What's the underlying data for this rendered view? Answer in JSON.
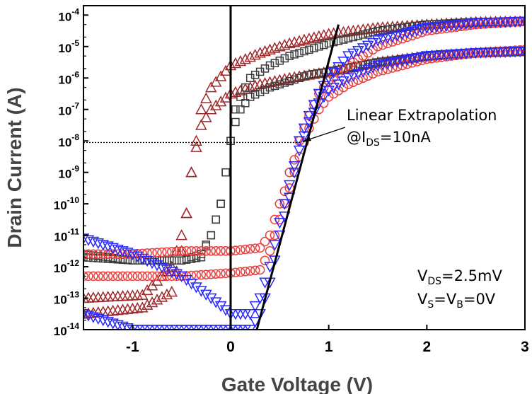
{
  "chart_data": {
    "type": "scatter",
    "title": "",
    "xlabel": "Gate Voltage (V)",
    "ylabel": "Drain Current (A)",
    "xlim": [
      -1.5,
      3
    ],
    "ylim": [
      -14,
      -3.7
    ],
    "yscale": "log",
    "x_ticks": [
      {
        "value": -1,
        "label": "-1"
      },
      {
        "value": 0,
        "label": "0"
      },
      {
        "value": 1,
        "label": "1"
      },
      {
        "value": 2,
        "label": "2"
      },
      {
        "value": 3,
        "label": "3"
      }
    ],
    "y_ticks": [
      {
        "exp": -4,
        "base": "10",
        "sup": "-4"
      },
      {
        "exp": -5,
        "base": "10",
        "sup": "-5"
      },
      {
        "exp": -6,
        "base": "10",
        "sup": "-6"
      },
      {
        "exp": -7,
        "base": "10",
        "sup": "-7"
      },
      {
        "exp": -8,
        "base": "10",
        "sup": "-8"
      },
      {
        "exp": -9,
        "base": "10",
        "sup": "-9"
      },
      {
        "exp": -10,
        "base": "10",
        "sup": "-10"
      },
      {
        "exp": -11,
        "base": "10",
        "sup": "-11"
      },
      {
        "exp": -12,
        "base": "10",
        "sup": "-12"
      },
      {
        "exp": -13,
        "base": "10",
        "sup": "-13"
      },
      {
        "exp": -14,
        "base": "10",
        "sup": "-14"
      }
    ],
    "series": [
      {
        "name": "triangle-up high VDS",
        "marker": "triangle-up",
        "color": "#a0282a",
        "x": [
          -1.5,
          -0.9,
          -0.6,
          -0.5,
          -0.45,
          -0.4,
          -0.35,
          -0.3,
          -0.2,
          0,
          0.3,
          0.6,
          1.0,
          1.5,
          2.0,
          2.5,
          3.0
        ],
        "log10_y": [
          -13.0,
          -12.9,
          -12.0,
          -11.0,
          -10.3,
          -9.0,
          -8.0,
          -7.0,
          -6.3,
          -5.6,
          -5.2,
          -4.9,
          -4.6,
          -4.4,
          -4.3,
          -4.22,
          -4.2
        ]
      },
      {
        "name": "triangle-up low VDS",
        "marker": "triangle-up",
        "color": "#a0282a",
        "x": [
          -1.5,
          -0.9,
          -0.6,
          -0.5,
          -0.45,
          -0.4,
          -0.35,
          -0.3,
          -0.2,
          0,
          0.3,
          0.6,
          1.0,
          1.5,
          2.0,
          2.5,
          3.0
        ],
        "log10_y": [
          -13.5,
          -13.3,
          -12.8,
          -11.5,
          -10.3,
          -9.0,
          -8.2,
          -7.5,
          -7.0,
          -6.5,
          -6.2,
          -6.0,
          -5.8,
          -5.5,
          -5.3,
          -5.2,
          -5.15
        ]
      },
      {
        "name": "square high VDS",
        "marker": "square",
        "color": "#3c3c3c",
        "x": [
          -1.5,
          -1.0,
          -0.5,
          -0.3,
          -0.2,
          -0.1,
          -0.05,
          0,
          0.05,
          0.1,
          0.2,
          0.4,
          0.6,
          0.8,
          1.0,
          1.5,
          2.0,
          2.5,
          3.0
        ],
        "log10_y": [
          -11.6,
          -11.8,
          -11.8,
          -11.6,
          -11.0,
          -10.0,
          -9.0,
          -8.0,
          -7.0,
          -6.6,
          -6.0,
          -5.6,
          -5.3,
          -5.1,
          -4.9,
          -4.5,
          -4.3,
          -4.22,
          -4.2
        ]
      },
      {
        "name": "square low VDS",
        "marker": "square",
        "color": "#3c3c3c",
        "x": [
          -1.5,
          -1.0,
          -0.5,
          -0.3,
          -0.2,
          -0.1,
          -0.05,
          0,
          0.05,
          0.1,
          0.2,
          0.4,
          0.6,
          0.8,
          1.0,
          1.5,
          2.0,
          2.5,
          3.0
        ],
        "log10_y": [
          -11.7,
          -11.8,
          -11.8,
          -11.7,
          -11.0,
          -10.0,
          -9.0,
          -8.0,
          -7.4,
          -7.0,
          -6.6,
          -6.3,
          -6.1,
          -5.9,
          -5.8,
          -5.5,
          -5.3,
          -5.2,
          -5.15
        ]
      },
      {
        "name": "circle high VDS",
        "marker": "circle",
        "color": "#e84040",
        "x": [
          -1.5,
          -1.0,
          -0.5,
          0,
          0.3,
          0.4,
          0.45,
          0.5,
          0.55,
          0.6,
          0.65,
          0.7,
          0.8,
          0.9,
          1.0,
          1.2,
          1.5,
          2.0,
          2.5,
          3.0
        ],
        "log10_y": [
          -11.6,
          -11.6,
          -11.5,
          -11.5,
          -11.4,
          -11.0,
          -10.5,
          -10.0,
          -9.6,
          -9.0,
          -8.6,
          -8.0,
          -7.2,
          -6.5,
          -6.1,
          -5.6,
          -5.0,
          -4.5,
          -4.3,
          -4.2
        ]
      },
      {
        "name": "circle low VDS",
        "marker": "circle",
        "color": "#e84040",
        "x": [
          -1.5,
          -1.0,
          -0.5,
          0,
          0.3,
          0.4,
          0.45,
          0.5,
          0.55,
          0.6,
          0.65,
          0.7,
          0.8,
          0.9,
          1.0,
          1.2,
          1.5,
          2.0,
          2.5,
          3.0
        ],
        "log10_y": [
          -12.3,
          -12.3,
          -12.3,
          -12.2,
          -12.1,
          -11.5,
          -11.0,
          -10.5,
          -10.0,
          -9.5,
          -9.0,
          -8.5,
          -7.6,
          -7.0,
          -6.6,
          -6.2,
          -5.8,
          -5.4,
          -5.2,
          -5.1
        ]
      },
      {
        "name": "triangle-down high VDS",
        "marker": "triangle-down",
        "color": "#2828ff",
        "x": [
          -1.5,
          -1.0,
          -0.5,
          -0.2,
          0,
          0.2,
          0.3,
          0.4,
          0.45,
          0.5,
          0.55,
          0.6,
          0.65,
          0.7,
          0.8,
          0.9,
          1.0,
          1.2,
          1.5,
          2.0,
          2.5,
          3.0
        ],
        "log10_y": [
          -11.1,
          -11.6,
          -12.3,
          -13.0,
          -13.5,
          -13.5,
          -13.0,
          -12.0,
          -11.3,
          -10.6,
          -10.0,
          -9.4,
          -8.8,
          -8.0,
          -7.2,
          -6.5,
          -6.0,
          -5.3,
          -4.8,
          -4.4,
          -4.25,
          -4.2
        ]
      },
      {
        "name": "triangle-down low VDS",
        "marker": "triangle-down",
        "color": "#2828ff",
        "x": [
          -1.5,
          -1.0,
          -0.5,
          -0.2,
          0,
          0.2,
          0.3,
          0.4,
          0.45,
          0.5,
          0.55,
          0.6,
          0.65,
          0.7,
          0.8,
          0.9,
          1.0,
          1.2,
          1.5,
          2.0,
          2.5,
          3.0
        ],
        "log10_y": [
          -13.5,
          -14.0,
          -14.0,
          -14.0,
          -14.0,
          -14.0,
          -13.5,
          -12.5,
          -11.8,
          -11.0,
          -10.4,
          -9.8,
          -9.0,
          -8.3,
          -7.4,
          -6.8,
          -6.4,
          -6.0,
          -5.6,
          -5.3,
          -5.2,
          -5.15
        ]
      }
    ],
    "lines": [
      {
        "name": "vertical-zero-line",
        "x": [
          0,
          0
        ],
        "log10_y": [
          -3.7,
          -14
        ]
      },
      {
        "name": "linear-extrapolation-line",
        "x": [
          0.25,
          1.1
        ],
        "log10_y": [
          -14.2,
          -4.3
        ]
      },
      {
        "name": "ids-10nA-dotted-line",
        "x": [
          -1.5,
          0.72
        ],
        "log10_y": [
          -8.05,
          -8.05
        ]
      }
    ],
    "annotations": {
      "extrapolation_line1": "Linear Extrapolation",
      "extrapolation_line2_pre": "@I",
      "extrapolation_line2_sub": "DS",
      "extrapolation_line2_post": "=10nA",
      "arrow_tip": {
        "x": 0.72,
        "log10_y": -8.05
      },
      "vds_pre": "V",
      "vds_sub": "DS",
      "vds_post": "=2.5mV",
      "vs_pre": "V",
      "vs_sub1": "S",
      "vs_mid": "=V",
      "vs_sub2": "B",
      "vs_post": "=0V"
    }
  }
}
